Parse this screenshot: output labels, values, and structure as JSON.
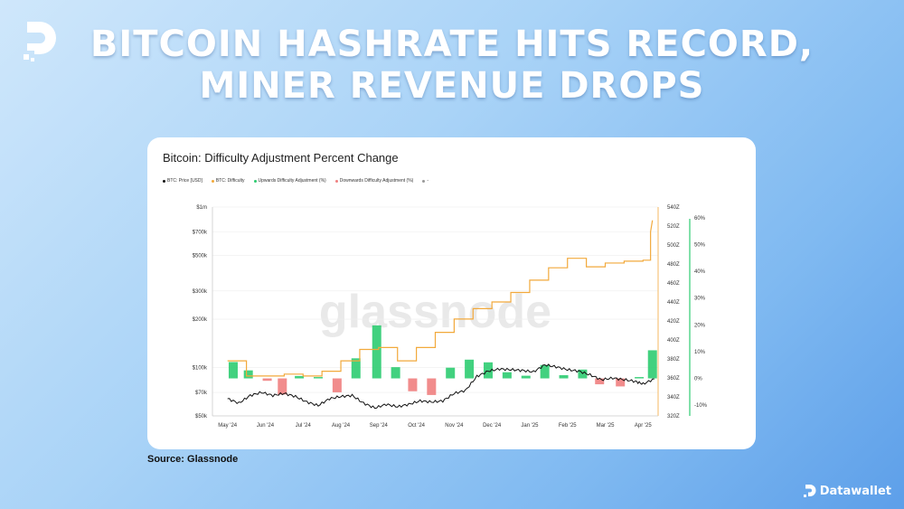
{
  "headline": {
    "line1": "BITCOIN HASHRATE HITS RECORD,",
    "line2": "MINER REVENUE DROPS"
  },
  "source": "Source: Glassnode",
  "brand": {
    "name": "Datawallet",
    "logo_icon": "datawallet-d-icon"
  },
  "colors": {
    "price": "#111111",
    "difficulty": "#f2a93b",
    "up": "#2ecc71",
    "down": "#f08080"
  },
  "chart_data": {
    "type": "line",
    "title": "Bitcoin: Difficulty Adjustment Percent Change",
    "watermark": "glassnode",
    "legend": [
      {
        "label": "BTC: Price [USD]",
        "color": "#111111"
      },
      {
        "label": "BTC: Difficulty",
        "color": "#f2a93b"
      },
      {
        "label": "Upwards Difficulty Adjustment (%)",
        "color": "#2ecc71"
      },
      {
        "label": "Downwards Difficulty Adjustment (%)",
        "color": "#f08080"
      },
      {
        "label": "-",
        "color": "#999999"
      }
    ],
    "x_ticks": [
      "May '24",
      "Jun '24",
      "Jul '24",
      "Aug '24",
      "Sep '24",
      "Oct '24",
      "Nov '24",
      "Dec '24",
      "Jan '25",
      "Feb '25",
      "Mar '25",
      "Apr '25"
    ],
    "left_axis": {
      "scale": "log",
      "ticks": [
        "$1m",
        "$700k",
        "$500k",
        "$300k",
        "$200k",
        "$100k",
        "$70k",
        "$50k"
      ],
      "tick_values": [
        1000000,
        700000,
        500000,
        300000,
        200000,
        100000,
        70000,
        50000
      ],
      "range": [
        50000,
        1000000
      ]
    },
    "right_axis_difficulty": {
      "ticks": [
        "540Z",
        "520Z",
        "500Z",
        "480Z",
        "460Z",
        "440Z",
        "420Z",
        "400Z",
        "380Z",
        "360Z",
        "340Z",
        "320Z"
      ],
      "tick_values": [
        540,
        520,
        500,
        480,
        460,
        440,
        420,
        400,
        380,
        360,
        340,
        320
      ],
      "range": [
        320,
        540
      ]
    },
    "right_axis_percent": {
      "ticks": [
        "60%",
        "50%",
        "40%",
        "30%",
        "20%",
        "10%",
        "0%",
        "-10%"
      ],
      "tick_values": [
        60,
        50,
        40,
        30,
        20,
        10,
        0,
        -10
      ],
      "range": [
        -14,
        64
      ]
    },
    "series": [
      {
        "name": "BTC: Price [USD]",
        "x": [
          0,
          0.3,
          0.6,
          0.9,
          1.2,
          1.5,
          1.8,
          2.1,
          2.4,
          2.7,
          3.0,
          3.3,
          3.6,
          3.9,
          4.2,
          4.5,
          4.8,
          5.1,
          5.4,
          5.7,
          6.0,
          6.3,
          6.6,
          6.9,
          7.2,
          7.5,
          7.8,
          8.1,
          8.4,
          8.7,
          9.0,
          9.3,
          9.6,
          9.9,
          10.2,
          10.5,
          10.8,
          11.0,
          11.3
        ],
        "values": [
          64000,
          60000,
          67000,
          70000,
          67000,
          69000,
          66000,
          61000,
          58000,
          64000,
          66000,
          67000,
          60000,
          56000,
          59000,
          57000,
          59000,
          62000,
          61000,
          62000,
          69000,
          72000,
          88000,
          95000,
          98000,
          97000,
          96000,
          94000,
          104000,
          101000,
          97000,
          95000,
          90000,
          84000,
          86000,
          84000,
          82000,
          79000,
          85000
        ]
      },
      {
        "name": "BTC: Difficulty",
        "x": [
          0,
          0.5,
          0.5,
          1.0,
          1.0,
          1.5,
          1.5,
          2.0,
          2.0,
          2.5,
          2.5,
          3.0,
          3.0,
          3.5,
          3.5,
          4.0,
          4.0,
          4.5,
          4.5,
          5.0,
          5.0,
          5.5,
          5.5,
          6.0,
          6.0,
          6.5,
          6.5,
          7.0,
          7.0,
          7.5,
          7.5,
          8.0,
          8.0,
          8.5,
          8.5,
          9.0,
          9.0,
          9.5,
          9.5,
          10.0,
          10.0,
          10.5,
          10.5,
          11.0,
          11.0,
          11.2,
          11.2,
          11.25
        ],
        "values": [
          378,
          378,
          362,
          362,
          362,
          362,
          364,
          364,
          362,
          362,
          367,
          367,
          378,
          378,
          390,
          390,
          392,
          392,
          378,
          378,
          392,
          392,
          408,
          408,
          422,
          422,
          433,
          433,
          440,
          440,
          450,
          450,
          463,
          463,
          476,
          476,
          486,
          486,
          477,
          477,
          481,
          481,
          483,
          483,
          484,
          484,
          514,
          526
        ]
      }
    ],
    "adjustments": {
      "x": [
        0.15,
        0.55,
        1.05,
        1.45,
        1.9,
        2.4,
        2.9,
        3.4,
        3.95,
        4.45,
        4.9,
        5.4,
        5.9,
        6.4,
        6.9,
        7.4,
        7.9,
        8.4,
        8.9,
        9.4,
        9.85,
        10.4,
        10.9,
        11.25
      ],
      "values": [
        6.1,
        3.0,
        -0.9,
        -6.0,
        0.9,
        0.5,
        -5.2,
        7.5,
        19.8,
        4.2,
        -4.8,
        -6.2,
        4.0,
        7.0,
        6.0,
        2.3,
        1.0,
        5.0,
        1.2,
        3.3,
        -2.2,
        -3.0,
        0.5,
        10.5
      ]
    }
  }
}
